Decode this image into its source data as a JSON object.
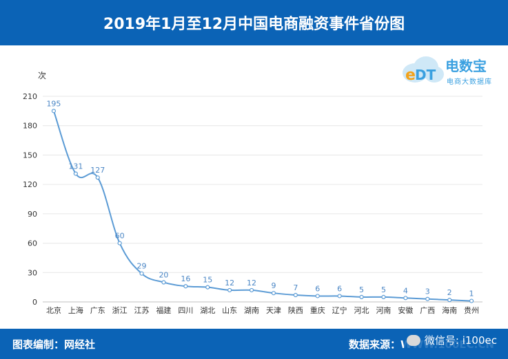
{
  "header": {
    "title": "2019年1月至12月中国电商融资事件省份图"
  },
  "logo": {
    "brand": "电数宝",
    "sub": "电商大数据库"
  },
  "footer": {
    "left": "图表编制：网经社",
    "right": "数据来源：WWW.100EC.CN",
    "wechat": "微信号: i100ec"
  },
  "chart_data": {
    "type": "line",
    "categories": [
      "北京",
      "上海",
      "广东",
      "浙江",
      "江苏",
      "福建",
      "四川",
      "湖北",
      "山东",
      "湖南",
      "天津",
      "陕西",
      "重庆",
      "辽宁",
      "河北",
      "河南",
      "安徽",
      "广西",
      "海南",
      "贵州"
    ],
    "values": [
      195,
      131,
      127,
      60,
      29,
      20,
      16,
      15,
      12,
      12,
      9,
      7,
      6,
      6,
      5,
      5,
      4,
      3,
      2,
      1
    ],
    "ylabel": "次",
    "ylim": [
      0,
      210
    ],
    "yticks": [
      0,
      30,
      60,
      90,
      120,
      150,
      180,
      210
    ],
    "grid": true,
    "color": "#5b9bd5",
    "label_color": "#4a86c5"
  }
}
